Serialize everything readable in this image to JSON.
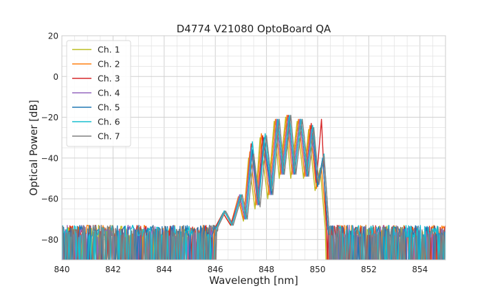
{
  "chart_data": {
    "type": "line",
    "title": "D4774 V21080 OptoBoard QA",
    "xlabel": "Wavelength [nm]",
    "ylabel": "Optical Power [dB]",
    "xlim": [
      840,
      855
    ],
    "ylim": [
      -90,
      20
    ],
    "x_ticks": [
      840,
      842,
      844,
      846,
      848,
      850,
      852,
      854
    ],
    "y_ticks": [
      -80,
      -60,
      -40,
      -20,
      0,
      20
    ],
    "x_tick_labels": [
      "840",
      "842",
      "844",
      "846",
      "848",
      "850",
      "852",
      "854"
    ],
    "y_tick_labels": [
      "−80",
      "−60",
      "−40",
      "−20",
      "0",
      "20"
    ],
    "grid": true,
    "minor_grid": true,
    "legend_position": "upper-left",
    "noise_floor": {
      "wavelength_range": [
        840,
        845.9
      ],
      "level_band_db": [
        -90,
        -73
      ]
    },
    "series": [
      {
        "name": "Ch. 1",
        "color": "#bcbd22",
        "x": [
          846.0,
          846.3,
          846.6,
          846.9,
          847.1,
          847.3,
          847.55,
          847.75,
          848.05,
          848.3,
          848.5,
          848.75,
          848.95,
          849.2,
          849.45,
          849.65,
          849.9,
          850.1,
          850.3
        ],
        "y": [
          -74,
          -67,
          -73,
          -60,
          -71,
          -40,
          -65,
          -30,
          -60,
          -22,
          -50,
          -20,
          -50,
          -22,
          -50,
          -26,
          -56,
          -45,
          -75
        ]
      },
      {
        "name": "Ch. 2",
        "color": "#ff7f0e",
        "x": [
          846.0,
          846.3,
          846.6,
          846.9,
          847.1,
          847.35,
          847.6,
          847.8,
          848.1,
          848.35,
          848.55,
          848.8,
          849.0,
          849.25,
          849.5,
          849.7,
          849.95,
          850.15,
          850.35
        ],
        "y": [
          -74,
          -67,
          -73,
          -59,
          -70,
          -37,
          -63,
          -28,
          -58,
          -21,
          -48,
          -19,
          -48,
          -21,
          -49,
          -24,
          -55,
          -44,
          -75
        ]
      },
      {
        "name": "Ch. 3",
        "color": "#d62728",
        "x": [
          846.0,
          846.3,
          846.6,
          846.95,
          847.15,
          847.4,
          847.65,
          847.85,
          848.15,
          848.4,
          848.6,
          848.85,
          849.05,
          849.3,
          849.55,
          849.75,
          849.95,
          850.15,
          850.35
        ],
        "y": [
          -74,
          -67,
          -73,
          -59,
          -70,
          -33,
          -62,
          -29,
          -57,
          -21,
          -47,
          -19,
          -47,
          -21,
          -48,
          -23,
          -52,
          -21,
          -75
        ]
      },
      {
        "name": "Ch. 4",
        "color": "#9467bd",
        "x": [
          846.05,
          846.35,
          846.65,
          846.95,
          847.15,
          847.4,
          847.65,
          847.9,
          848.15,
          848.4,
          848.6,
          848.85,
          849.05,
          849.3,
          849.55,
          849.75,
          850.0,
          850.2,
          850.4
        ],
        "y": [
          -74,
          -66,
          -73,
          -58,
          -70,
          -35,
          -63,
          -30,
          -58,
          -21,
          -48,
          -20,
          -48,
          -21,
          -49,
          -26,
          -54,
          -40,
          -75
        ]
      },
      {
        "name": "Ch. 5",
        "color": "#1f77b4",
        "x": [
          846.05,
          846.35,
          846.65,
          847.0,
          847.2,
          847.45,
          847.7,
          847.9,
          848.2,
          848.45,
          848.65,
          848.9,
          849.1,
          849.35,
          849.6,
          849.8,
          850.0,
          850.2,
          850.4
        ],
        "y": [
          -74,
          -66,
          -73,
          -58,
          -70,
          -36,
          -63,
          -30,
          -58,
          -21,
          -48,
          -20,
          -48,
          -21,
          -49,
          -24,
          -54,
          -40,
          -75
        ]
      },
      {
        "name": "Ch. 6",
        "color": "#17becf",
        "x": [
          846.05,
          846.35,
          846.65,
          847.0,
          847.2,
          847.45,
          847.7,
          847.95,
          848.2,
          848.45,
          848.65,
          848.9,
          849.1,
          849.35,
          849.6,
          849.8,
          850.05,
          850.25,
          850.45
        ],
        "y": [
          -74,
          -66,
          -73,
          -58,
          -70,
          -32,
          -62,
          -28,
          -56,
          -21,
          -47,
          -19,
          -47,
          -21,
          -48,
          -24,
          -52,
          -38,
          -75
        ]
      },
      {
        "name": "Ch. 7",
        "color": "#7f7f7f",
        "x": [
          846.1,
          846.4,
          846.7,
          847.05,
          847.25,
          847.5,
          847.75,
          848.0,
          848.25,
          848.5,
          848.7,
          848.95,
          849.15,
          849.4,
          849.65,
          849.85,
          850.05,
          850.25,
          850.45
        ],
        "y": [
          -74,
          -66,
          -73,
          -58,
          -70,
          -38,
          -64,
          -29,
          -58,
          -21,
          -48,
          -19,
          -48,
          -21,
          -49,
          -25,
          -53,
          -39,
          -75
        ]
      }
    ]
  }
}
